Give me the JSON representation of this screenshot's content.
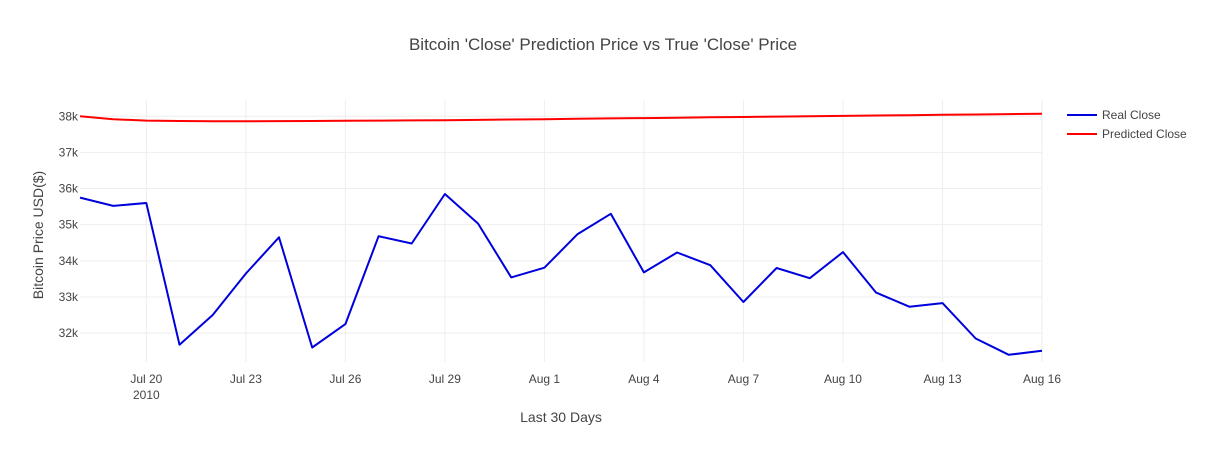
{
  "chart_data": {
    "type": "line",
    "title": "Bitcoin 'Close' Prediction Price vs True 'Close' Price",
    "xlabel": "Last 30 Days",
    "ylabel": "Bitcoin Price USD($)",
    "x_start": "2010-07-18",
    "x_ticks": [
      {
        "value": "2010-07-20",
        "label": "Jul 20",
        "sublabel": "2010"
      },
      {
        "value": "2010-07-23",
        "label": "Jul 23",
        "sublabel": ""
      },
      {
        "value": "2010-07-26",
        "label": "Jul 26",
        "sublabel": ""
      },
      {
        "value": "2010-07-29",
        "label": "Jul 29",
        "sublabel": ""
      },
      {
        "value": "2010-08-01",
        "label": "Aug 1",
        "sublabel": ""
      },
      {
        "value": "2010-08-04",
        "label": "Aug 4",
        "sublabel": ""
      },
      {
        "value": "2010-08-07",
        "label": "Aug 7",
        "sublabel": ""
      },
      {
        "value": "2010-08-10",
        "label": "Aug 10",
        "sublabel": ""
      },
      {
        "value": "2010-08-13",
        "label": "Aug 13",
        "sublabel": ""
      },
      {
        "value": "2010-08-16",
        "label": "Aug 16",
        "sublabel": ""
      }
    ],
    "y_ticks": [
      {
        "value": 32000,
        "label": "32k"
      },
      {
        "value": 33000,
        "label": "33k"
      },
      {
        "value": 34000,
        "label": "34k"
      },
      {
        "value": 35000,
        "label": "35k"
      },
      {
        "value": 36000,
        "label": "36k"
      },
      {
        "value": 37000,
        "label": "37k"
      },
      {
        "value": 38000,
        "label": "38k"
      }
    ],
    "ylim": [
      31200,
      38450
    ],
    "grid": true,
    "legend_position": "top-right",
    "series": [
      {
        "name": "Real Close",
        "color": "#0000dd",
        "values": [
          35750,
          35520,
          35600,
          31680,
          32500,
          33650,
          34650,
          31600,
          32250,
          34680,
          34480,
          35850,
          35030,
          33540,
          33810,
          34740,
          35300,
          33680,
          34230,
          33880,
          32860,
          33800,
          33520,
          34240,
          33120,
          32730,
          32830,
          31850,
          31400,
          31510
        ]
      },
      {
        "name": "Predicted Close",
        "color": "#ff0000",
        "values": [
          38000,
          37920,
          37880,
          37870,
          37860,
          37860,
          37865,
          37870,
          37875,
          37880,
          37885,
          37890,
          37900,
          37910,
          37920,
          37930,
          37940,
          37950,
          37960,
          37970,
          37980,
          37990,
          38000,
          38010,
          38020,
          38030,
          38040,
          38050,
          38060,
          38070
        ]
      }
    ]
  }
}
